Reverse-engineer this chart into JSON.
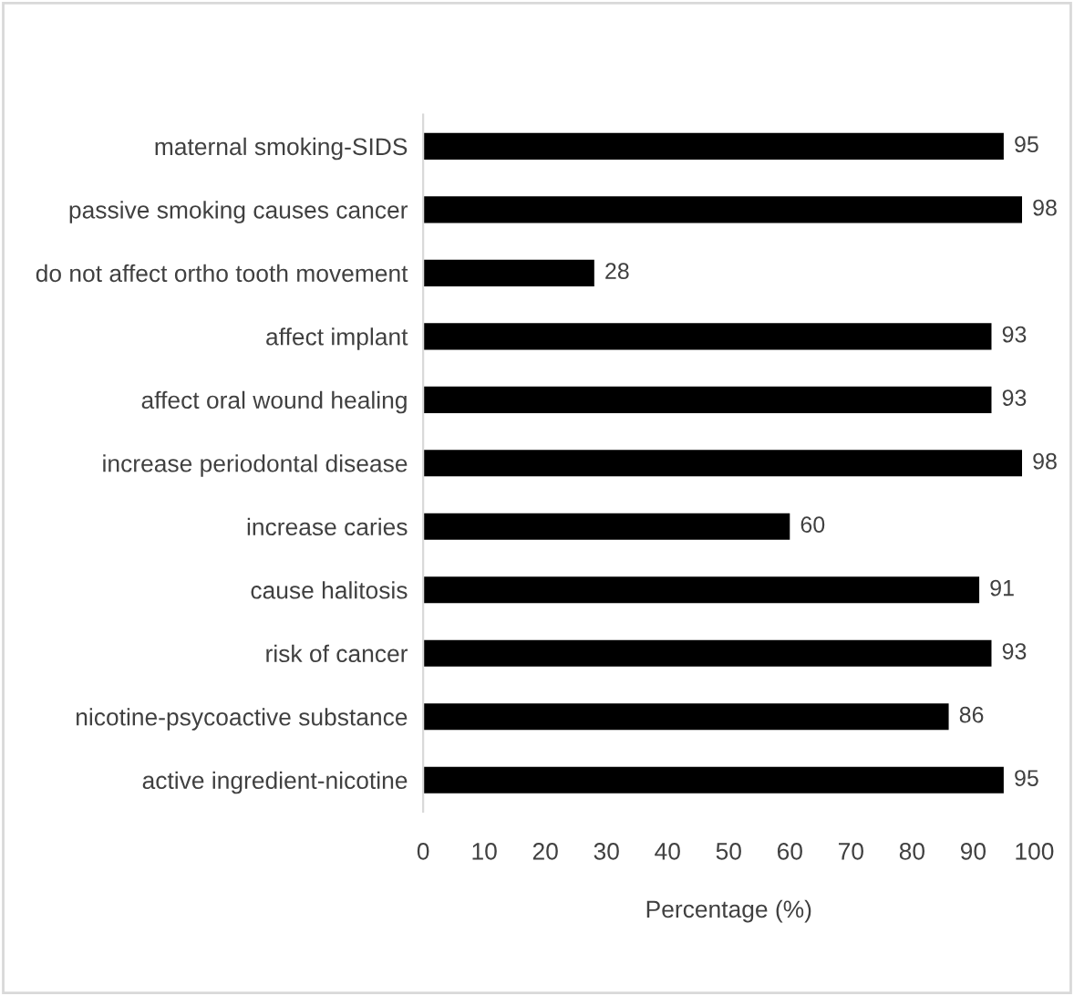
{
  "chart_data": {
    "type": "bar",
    "orientation": "horizontal",
    "xlabel": "Percentage (%)",
    "categories": [
      "maternal smoking-SIDS",
      "passive smoking causes cancer",
      "do not affect ortho tooth movement",
      "affect implant",
      "affect oral wound healing",
      "increase periodontal disease",
      "increase caries",
      "cause halitosis",
      "risk of cancer",
      "nicotine-psycoactive substance",
      "active ingredient-nicotine"
    ],
    "values": [
      95,
      98,
      28,
      93,
      93,
      98,
      60,
      91,
      93,
      86,
      95
    ],
    "color": "#000000",
    "data_labels": true,
    "grid": false,
    "legend": false,
    "xlim": [
      0,
      100
    ],
    "xticks": [
      0,
      10,
      20,
      30,
      40,
      50,
      60,
      70,
      80,
      90,
      100
    ]
  }
}
